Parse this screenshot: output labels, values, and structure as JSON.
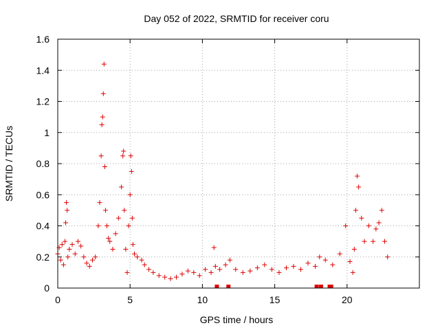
{
  "chart_data": {
    "type": "scatter",
    "title": "Day 052 of 2022, SRMTID for receiver coru",
    "xlabel": "GPS time / hours",
    "ylabel": "SRMTID / TECUs",
    "xlim": [
      0,
      25
    ],
    "ylim": [
      0,
      1.6
    ],
    "x_ticks": [
      0,
      5,
      10,
      15,
      20
    ],
    "y_ticks": [
      0,
      0.2,
      0.4,
      0.6,
      0.8,
      1,
      1.2,
      1.4,
      1.6
    ],
    "x_tick_labels": [
      "0",
      "5",
      "10",
      "15",
      "20"
    ],
    "y_tick_labels": [
      "0",
      "0.2",
      "0.4",
      "0.6",
      "0.8",
      "1",
      "1.2",
      "1.4",
      "1.6"
    ],
    "grid": true,
    "marker": "plus",
    "color": "#e00000",
    "series": [
      {
        "name": "SRMTID",
        "x": [
          0.0,
          0.1,
          0.2,
          0.3,
          0.4,
          0.5,
          0.55,
          0.6,
          0.65,
          0.7,
          0.8,
          1.0,
          1.2,
          1.4,
          1.6,
          1.8,
          2.0,
          2.2,
          2.4,
          2.6,
          2.8,
          2.9,
          3.0,
          3.05,
          3.1,
          3.15,
          3.2,
          3.25,
          3.3,
          3.4,
          3.5,
          3.6,
          3.8,
          4.0,
          4.2,
          4.4,
          4.5,
          4.55,
          4.6,
          4.7,
          4.8,
          4.9,
          5.0,
          5.05,
          5.1,
          5.15,
          5.2,
          5.3,
          5.5,
          5.8,
          6.0,
          6.3,
          6.6,
          7.0,
          7.4,
          7.8,
          8.2,
          8.6,
          9.0,
          9.4,
          9.8,
          10.2,
          10.6,
          10.8,
          10.9,
          11.2,
          11.6,
          11.9,
          12.3,
          12.8,
          13.3,
          13.8,
          14.3,
          14.8,
          15.3,
          15.8,
          16.3,
          16.8,
          17.3,
          17.8,
          18.1,
          18.5,
          19.0,
          19.5,
          19.9,
          20.2,
          20.4,
          20.5,
          20.6,
          20.7,
          20.8,
          21.0,
          21.2,
          21.5,
          21.8,
          22.0,
          22.2,
          22.4,
          22.6,
          22.8
        ],
        "y": [
          0.22,
          0.26,
          0.18,
          0.28,
          0.15,
          0.3,
          0.42,
          0.55,
          0.5,
          0.2,
          0.25,
          0.28,
          0.22,
          0.3,
          0.27,
          0.2,
          0.16,
          0.14,
          0.18,
          0.2,
          0.4,
          0.55,
          0.85,
          1.05,
          1.1,
          1.25,
          1.44,
          0.78,
          0.5,
          0.4,
          0.32,
          0.3,
          0.25,
          0.35,
          0.45,
          0.65,
          0.85,
          0.88,
          0.5,
          0.25,
          0.1,
          0.4,
          0.6,
          0.85,
          0.75,
          0.45,
          0.28,
          0.22,
          0.2,
          0.18,
          0.15,
          0.12,
          0.1,
          0.08,
          0.07,
          0.06,
          0.07,
          0.09,
          0.11,
          0.1,
          0.08,
          0.12,
          0.1,
          0.26,
          0.14,
          0.12,
          0.15,
          0.18,
          0.12,
          0.1,
          0.11,
          0.13,
          0.15,
          0.12,
          0.1,
          0.13,
          0.14,
          0.12,
          0.16,
          0.14,
          0.2,
          0.18,
          0.15,
          0.22,
          0.4,
          0.17,
          0.1,
          0.25,
          0.5,
          0.72,
          0.65,
          0.45,
          0.3,
          0.4,
          0.3,
          0.38,
          0.42,
          0.5,
          0.3,
          0.2
        ]
      }
    ],
    "gap_markers_x": [
      11.0,
      11.8,
      17.9,
      18.2,
      18.8,
      18.9
    ]
  }
}
